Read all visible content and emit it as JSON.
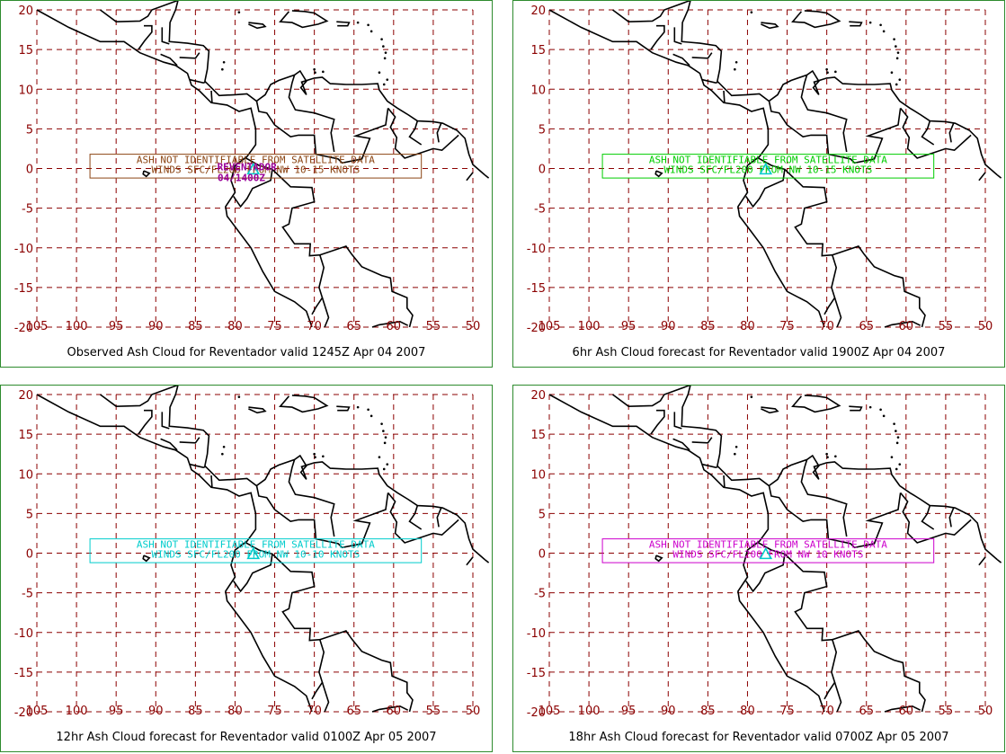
{
  "map": {
    "x_ticks": [
      "105",
      "100",
      "95",
      "90",
      "85",
      "80",
      "75",
      "70",
      "65",
      "60",
      "55",
      "50"
    ],
    "y_ticks": [
      "20",
      "15",
      "10",
      "5",
      "0",
      "-5",
      "-10",
      "-15",
      "-20"
    ],
    "grid_color": "#8b0000"
  },
  "panels": [
    {
      "caption": "Observed Ash Cloud for Reventador valid 1245Z Apr 04 2007",
      "box_color": "#8b4513",
      "line1": "ASH NOT IDENTIFIABLE FROM SATELLITE DATA",
      "line2": "WINDS SFC/FL200 FROM NW 10-15 KNOTS",
      "volcano_label": "REVENTADOR",
      "volcano_date": "04/1400Z",
      "label_color": "#990099"
    },
    {
      "caption": "6hr Ash Cloud forecast for Reventador valid 1900Z Apr 04 2007",
      "box_color": "#00cc00",
      "line1": "ASH NOT IDENTIFIABLE FROM SATELLITE DATA",
      "line2": "WINDS SFC/FL200 FROM NW 10-15 KNOTS"
    },
    {
      "caption": "12hr Ash Cloud forecast for Reventador valid 0100Z Apr 05 2007",
      "box_color": "#00cccc",
      "line1": "ASH NOT IDENTIFIABLE FROM SATELLITE DATA",
      "line2": "WINDS SFC/FL200 FROM NW 10-10 KNOTS"
    },
    {
      "caption": "18hr Ash Cloud forecast for Reventador valid 0700Z Apr 05 2007",
      "box_color": "#cc00cc",
      "line1": "ASH NOT IDENTIFIABLE FROM SATELLITE DATA",
      "line2": "WINDS SFC/FL200 FROM NW 10 KNOTS"
    }
  ]
}
